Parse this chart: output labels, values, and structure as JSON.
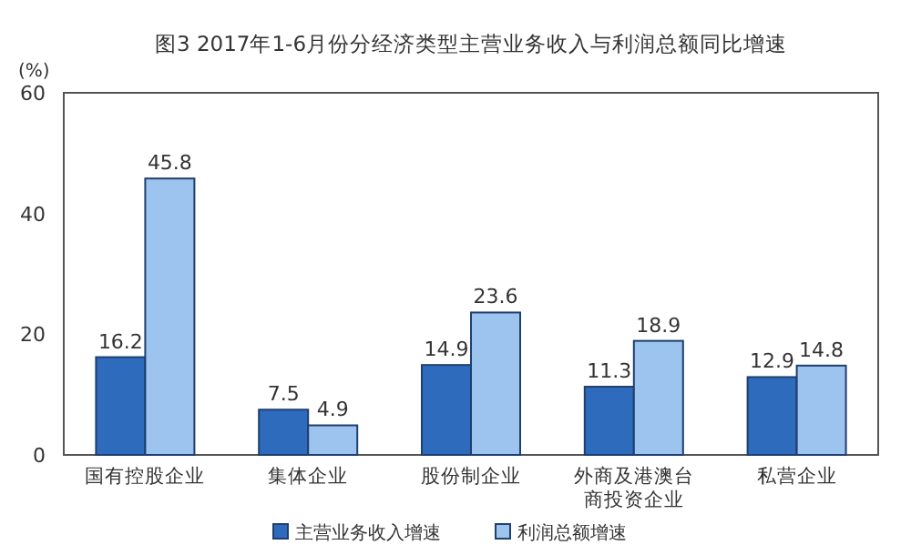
{
  "chart_data": {
    "type": "bar",
    "title": "图3  2017年1-6月份分经济类型主营业务收入与利润总额同比增速",
    "ylabel": "(%)",
    "categories": [
      "国有控股企业",
      "集体企业",
      "股份制企业",
      "外商及港澳台商投资企业",
      "私营企业"
    ],
    "series": [
      {
        "name": "主营业务收入增速",
        "color": "#2e6bbd",
        "values": [
          16.2,
          7.5,
          14.9,
          11.3,
          12.9
        ]
      },
      {
        "name": "利润总额增速",
        "color": "#9cc4ee",
        "values": [
          45.8,
          4.9,
          23.6,
          18.9,
          14.8
        ]
      }
    ],
    "ylim": [
      0,
      60
    ],
    "yticks": [
      0,
      20,
      40,
      60
    ],
    "data_labels": true,
    "legend": "bottom"
  }
}
